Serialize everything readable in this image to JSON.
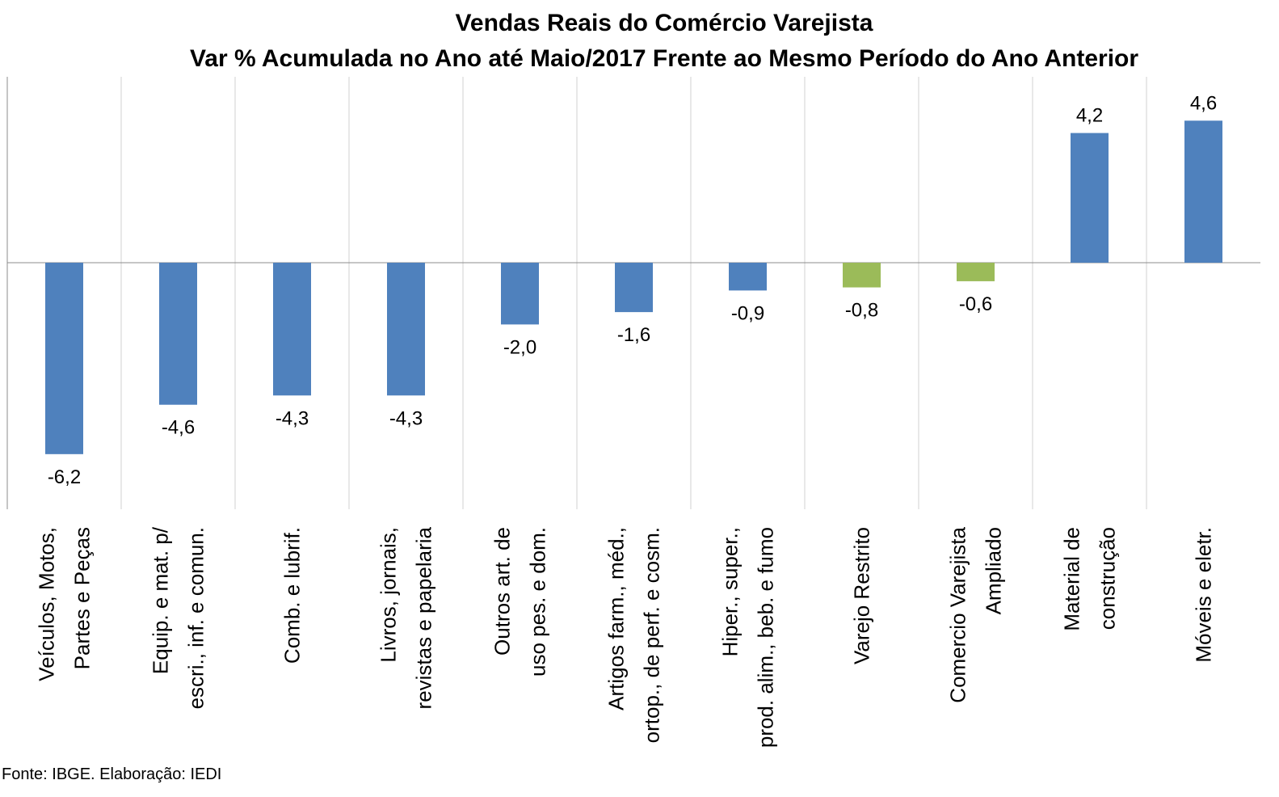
{
  "chart_data": {
    "type": "bar",
    "title": "Vendas Reais do Comércio Varejista",
    "subtitle": "Var % Acumulada no Ano até Maio/2017 Frente ao Mesmo Período do Ano Anterior",
    "categories": [
      [
        "Veículos, Motos,",
        "Partes e Peças"
      ],
      [
        "Equip. e mat. p/",
        "escri., inf. e comun."
      ],
      [
        "Comb. e lubrif."
      ],
      [
        "Livros, jornais,",
        "revistas e papelaria"
      ],
      [
        "Outros art. de",
        "uso pes. e dom."
      ],
      [
        "Artigos farm., méd.,",
        "ortop., de perf. e cosm."
      ],
      [
        "Hiper., super.,",
        "prod. alim., beb. e fumo"
      ],
      [
        "Varejo Restrito"
      ],
      [
        "Comercio Varejista",
        "Ampliado"
      ],
      [
        "Material de",
        "construção"
      ],
      [
        "Móveis e eletr."
      ]
    ],
    "values": [
      -6.2,
      -4.6,
      -4.3,
      -4.3,
      -2.0,
      -1.6,
      -0.9,
      -0.8,
      -0.6,
      4.2,
      4.6
    ],
    "value_labels": [
      "-6,2",
      "-4,6",
      "-4,3",
      "-4,3",
      "-2,0",
      "-1,6",
      "-0,9",
      "-0,8",
      "-0,6",
      "4,2",
      "4,6"
    ],
    "bar_colors": [
      "#4F81BD",
      "#4F81BD",
      "#4F81BD",
      "#4F81BD",
      "#4F81BD",
      "#4F81BD",
      "#4F81BD",
      "#9BBB59",
      "#9BBB59",
      "#4F81BD",
      "#4F81BD"
    ],
    "ylim": [
      -8,
      6
    ],
    "grid": "vertical",
    "legend": "none"
  },
  "footer": {
    "source": "Fonte: IBGE. Elaboração: IEDI"
  }
}
